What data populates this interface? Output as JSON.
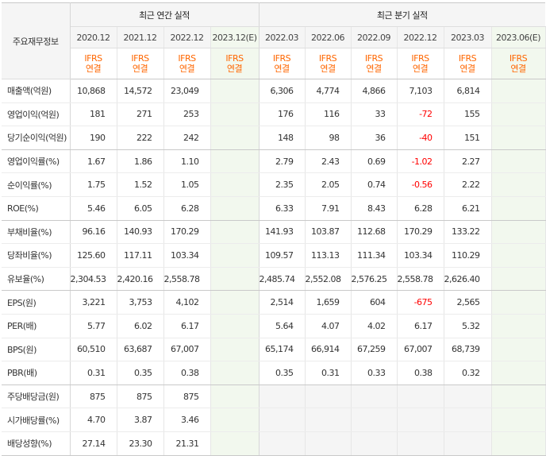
{
  "header": {
    "corner_label": "주요재무정보",
    "annual_title": "최근 연간 실적",
    "quarterly_title": "최근 분기 실적",
    "periods": [
      "2020.12",
      "2021.12",
      "2022.12",
      "2023.12(E)",
      "2022.03",
      "2022.06",
      "2022.09",
      "2022.12",
      "2023.03",
      "2023.06(E)"
    ],
    "ifrs_top": "IFRS",
    "ifrs_bottom": "연결"
  },
  "rows": [
    {
      "label": "매출액(억원)",
      "values": [
        "10,868",
        "14,572",
        "23,049",
        "",
        "6,306",
        "4,774",
        "4,866",
        "7,103",
        "6,814",
        ""
      ]
    },
    {
      "label": "영업이익(억원)",
      "values": [
        "181",
        "271",
        "253",
        "",
        "176",
        "116",
        "33",
        "-72",
        "155",
        ""
      ]
    },
    {
      "label": "당기순이익(억원)",
      "values": [
        "190",
        "222",
        "242",
        "",
        "148",
        "98",
        "36",
        "-40",
        "151",
        ""
      ]
    },
    {
      "label": "영업이익률(%)",
      "values": [
        "1.67",
        "1.86",
        "1.10",
        "",
        "2.79",
        "2.43",
        "0.69",
        "-1.02",
        "2.27",
        ""
      ]
    },
    {
      "label": "순이익률(%)",
      "values": [
        "1.75",
        "1.52",
        "1.05",
        "",
        "2.35",
        "2.05",
        "0.74",
        "-0.56",
        "2.22",
        ""
      ]
    },
    {
      "label": "ROE(%)",
      "values": [
        "5.46",
        "6.05",
        "6.28",
        "",
        "6.33",
        "7.91",
        "8.43",
        "6.28",
        "6.21",
        ""
      ]
    },
    {
      "label": "부채비율(%)",
      "values": [
        "96.16",
        "140.93",
        "170.29",
        "",
        "141.93",
        "103.87",
        "112.68",
        "170.29",
        "133.22",
        ""
      ]
    },
    {
      "label": "당좌비율(%)",
      "values": [
        "125.60",
        "117.11",
        "103.34",
        "",
        "109.57",
        "113.13",
        "111.34",
        "103.34",
        "110.29",
        ""
      ]
    },
    {
      "label": "유보율(%)",
      "values": [
        "2,304.53",
        "2,420.16",
        "2,558.78",
        "",
        "2,485.74",
        "2,552.08",
        "2,576.25",
        "2,558.78",
        "2,626.40",
        ""
      ]
    },
    {
      "label": "EPS(원)",
      "values": [
        "3,221",
        "3,753",
        "4,102",
        "",
        "2,514",
        "1,659",
        "604",
        "-675",
        "2,565",
        ""
      ]
    },
    {
      "label": "PER(배)",
      "values": [
        "5.77",
        "6.02",
        "6.17",
        "",
        "5.64",
        "4.07",
        "4.02",
        "6.17",
        "5.32",
        ""
      ]
    },
    {
      "label": "BPS(원)",
      "values": [
        "60,510",
        "63,687",
        "67,007",
        "",
        "65,174",
        "66,914",
        "67,259",
        "67,007",
        "68,739",
        ""
      ]
    },
    {
      "label": "PBR(배)",
      "values": [
        "0.31",
        "0.35",
        "0.38",
        "",
        "0.35",
        "0.31",
        "0.33",
        "0.38",
        "0.32",
        ""
      ]
    },
    {
      "label": "주당배당금(원)",
      "values": [
        "875",
        "875",
        "875",
        "",
        "",
        "",
        "",
        "",
        "",
        ""
      ]
    },
    {
      "label": "시가배당률(%)",
      "values": [
        "4.70",
        "3.87",
        "3.46",
        "",
        "",
        "",
        "",
        "",
        "",
        ""
      ]
    },
    {
      "label": "배당성향(%)",
      "values": [
        "27.14",
        "23.30",
        "21.31",
        "",
        "",
        "",
        "",
        "",
        "",
        ""
      ]
    }
  ],
  "colors": {
    "ifrs": "#ff6600",
    "negative": "#ff0000",
    "estimate_bg": "#f2f8ee",
    "header_bg": "#f5f5f5"
  }
}
